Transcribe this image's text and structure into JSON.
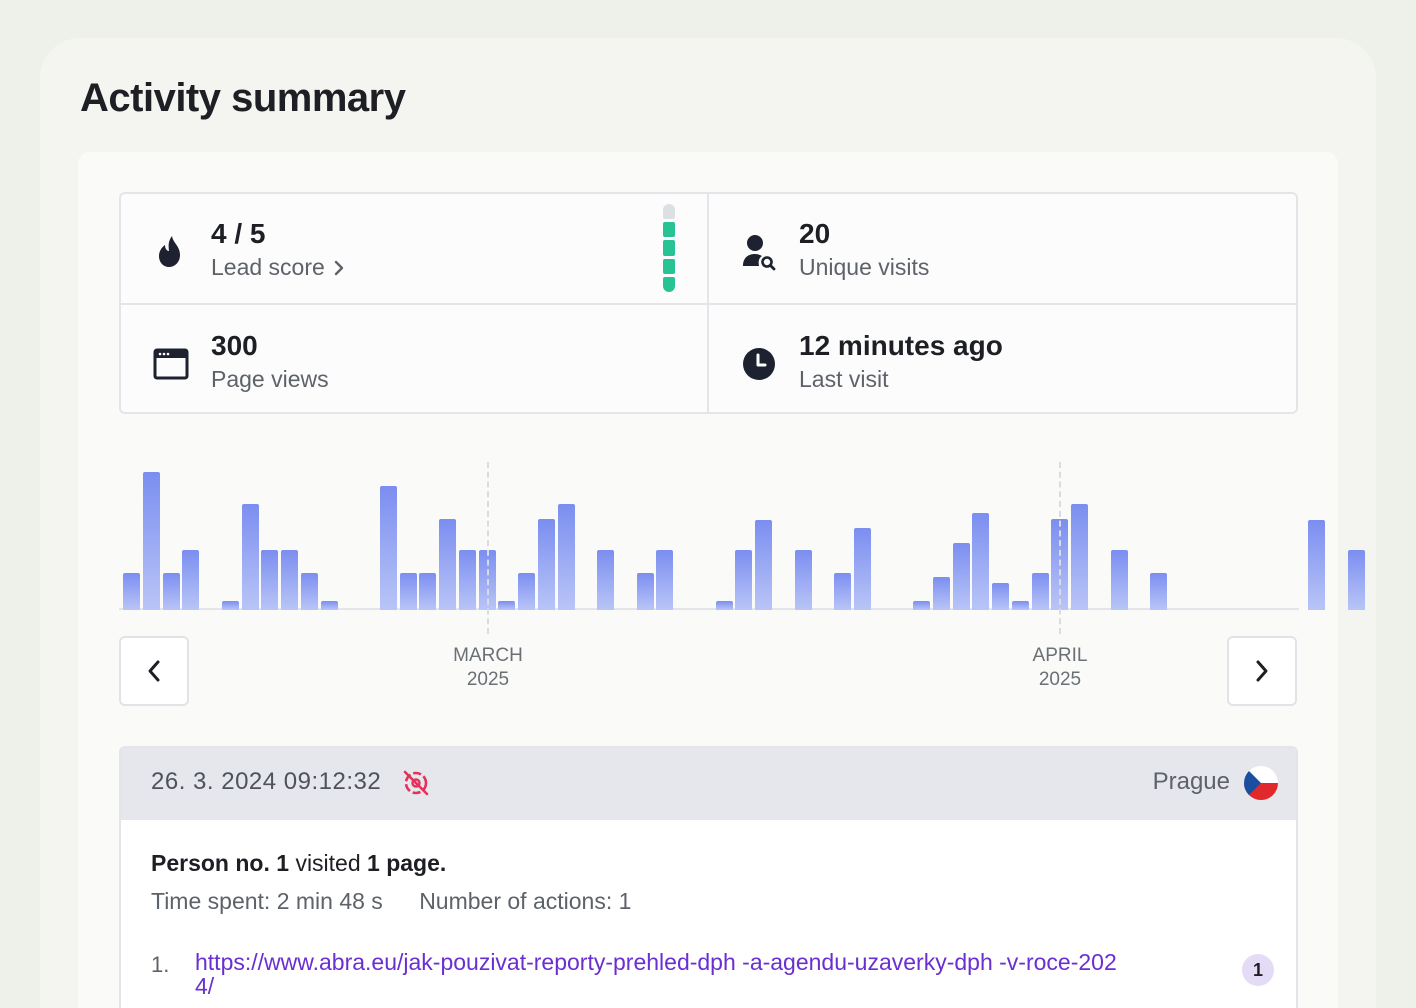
{
  "page": {
    "title": "Activity summary"
  },
  "stats": {
    "lead_score": {
      "value": "4 / 5",
      "label": "Lead score",
      "level": 4,
      "max": 5
    },
    "unique_visits": {
      "value": "20",
      "label": "Unique visits"
    },
    "page_views": {
      "value": "300",
      "label": "Page views"
    },
    "last_visit": {
      "value": "12 minutes ago",
      "label": "Last visit"
    }
  },
  "chart_data": {
    "type": "bar",
    "title": "",
    "xlabel": "",
    "ylabel": "",
    "ylim": [
      0,
      10
    ],
    "month_labels": [
      {
        "month": "MARCH",
        "year": "2025"
      },
      {
        "month": "APRIL",
        "year": "2025"
      }
    ],
    "values": [
      2.5,
      9.2,
      2.5,
      4,
      0,
      0.6,
      7.1,
      4,
      4,
      2.5,
      0.6,
      0,
      0,
      8.3,
      2.5,
      2.5,
      6.1,
      4,
      4,
      0.6,
      2.5,
      6.1,
      7.1,
      0,
      4,
      0,
      2.5,
      4,
      0,
      0,
      0.6,
      4,
      6,
      0,
      4,
      0,
      2.5,
      5.5,
      0,
      0,
      0.6,
      2.2,
      4.5,
      6.5,
      1.8,
      0.6,
      2.5,
      6.1,
      7.1,
      0,
      4,
      0,
      2.5,
      0,
      0,
      0,
      0,
      0,
      0,
      0,
      6,
      0,
      4
    ]
  },
  "navigation": {
    "prev_label": "previous period",
    "next_label": "next period"
  },
  "session": {
    "datetime": "26. 3. 2024 09:12:32",
    "city": "Prague",
    "person": "Person no. 1",
    "visited_text": "visited",
    "pages": "1 page.",
    "time_spent": "Time spent: 2 min 48 s",
    "actions": "Number of actions: 1",
    "page_views": [
      {
        "index": "1.",
        "url": "https://www.abra.eu/jak-pouzivat-reporty-prehled-dph -a-agendu-uzaverky-dph -v-roce-2024/",
        "count": "1"
      }
    ]
  },
  "colors": {
    "accent": "#6a2fd1",
    "bar": "#7b8ef0",
    "meter": "#27c394"
  }
}
